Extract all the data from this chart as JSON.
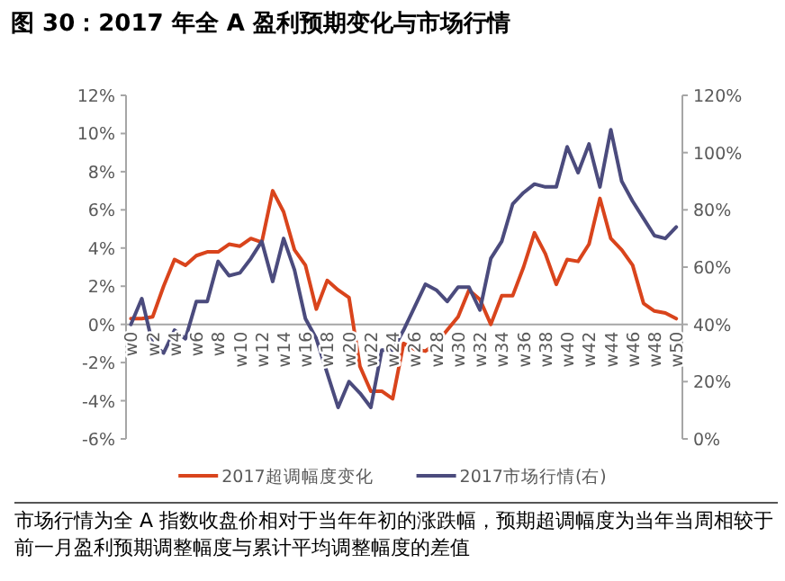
{
  "chart_data": {
    "type": "line",
    "title": "图 30：2017 年全 A 盈利预期变化与市场行情",
    "categories": [
      "w0",
      null,
      "w2",
      null,
      "w4",
      null,
      "w6",
      null,
      "w8",
      null,
      "w10",
      null,
      "w12",
      null,
      "w14",
      null,
      "w16",
      null,
      "w18",
      null,
      "w20",
      null,
      "w22",
      null,
      "w24",
      null,
      "w26",
      null,
      "w28",
      null,
      "w30",
      null,
      "w32",
      null,
      "w34",
      null,
      "w36",
      null,
      "w38",
      null,
      "w40",
      null,
      "w42",
      null,
      "w44",
      null,
      "w46",
      null,
      "w48",
      null,
      "w50"
    ],
    "series": [
      {
        "name": "2017超调幅度变化",
        "color": "#d9441c",
        "values": [
          0.3,
          0.3,
          0.4,
          2.0,
          3.4,
          3.1,
          3.6,
          3.8,
          3.8,
          4.2,
          4.1,
          4.5,
          4.3,
          7.0,
          5.9,
          3.9,
          3.1,
          0.8,
          2.3,
          1.8,
          1.4,
          -2.2,
          -3.5,
          -3.5,
          -3.9,
          -1.0,
          -1.3,
          -1.4,
          -1.0,
          -0.3,
          0.4,
          1.8,
          1.3,
          0.0,
          1.5,
          1.5,
          3.0,
          4.8,
          3.7,
          2.1,
          3.4,
          3.3,
          4.2,
          6.6,
          4.5,
          3.9,
          3.1,
          1.1,
          0.7,
          0.6,
          0.3
        ]
      },
      {
        "name": "2017市场行情(右)",
        "color": "#4b4b7d",
        "axis": "y2",
        "values": [
          40,
          49,
          33,
          30,
          38,
          35,
          48,
          48,
          62,
          57,
          58,
          63,
          69,
          55,
          70,
          59,
          42,
          35,
          23,
          11,
          20,
          16,
          11,
          31,
          31,
          38,
          46,
          54,
          52,
          48,
          53,
          53,
          45,
          63,
          69,
          82,
          86,
          89,
          88,
          88,
          102,
          93,
          103,
          88,
          108,
          90,
          83,
          77,
          71,
          70,
          74
        ]
      }
    ],
    "ylim": [
      -6,
      12
    ],
    "yticks": [
      {
        "value": -6,
        "label": "-6%"
      },
      {
        "value": -4,
        "label": "-4%"
      },
      {
        "value": -2,
        "label": "-2%"
      },
      {
        "value": 0,
        "label": "0%"
      },
      {
        "value": 2,
        "label": "2%"
      },
      {
        "value": 4,
        "label": "4%"
      },
      {
        "value": 6,
        "label": "6%"
      },
      {
        "value": 8,
        "label": "8%"
      },
      {
        "value": 10,
        "label": "10%"
      },
      {
        "value": 12,
        "label": "12%"
      }
    ],
    "y2lim": [
      0,
      120
    ],
    "y2ticks": [
      {
        "value": 0,
        "label": "0%"
      },
      {
        "value": 20,
        "label": "20%"
      },
      {
        "value": 40,
        "label": "40%"
      },
      {
        "value": 60,
        "label": "60%"
      },
      {
        "value": 80,
        "label": "80%"
      },
      {
        "value": 100,
        "label": "100%"
      },
      {
        "value": 120,
        "label": "120%"
      }
    ],
    "legend": "bottom",
    "annotations": [
      "市场行情为全 A 指数收盘价相对于当年年初的涨跌幅，预期超调幅度为当年当周相较于前一月盈利预期调整幅度与累计平均调整幅度的差值"
    ]
  }
}
